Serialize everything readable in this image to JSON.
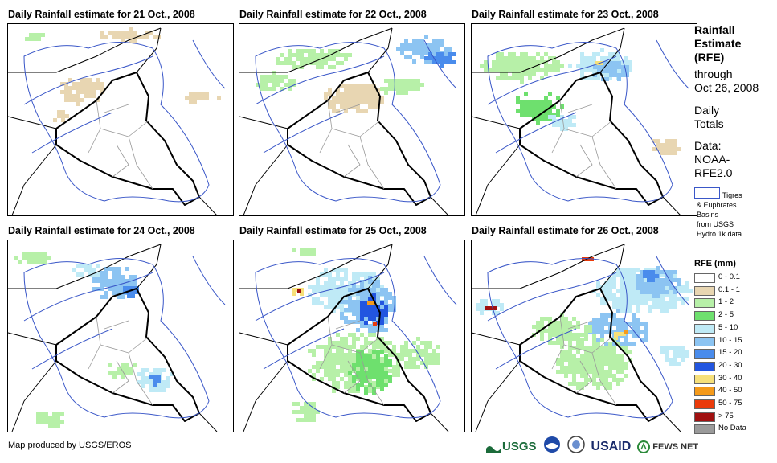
{
  "panels": [
    {
      "title": "Daily Rainfall estimate for 21 Oct., 2008",
      "intensity": 0
    },
    {
      "title": "Daily Rainfall estimate for 22 Oct., 2008",
      "intensity": 1
    },
    {
      "title": "Daily Rainfall estimate for 23 Oct., 2008",
      "intensity": 2
    },
    {
      "title": "Daily Rainfall estimate for 24 Oct., 2008",
      "intensity": 3
    },
    {
      "title": "Daily Rainfall estimate for 25 Oct., 2008",
      "intensity": 4
    },
    {
      "title": "Daily Rainfall estimate for 26 Oct., 2008",
      "intensity": 5
    }
  ],
  "side": {
    "title_line1": "Rainfall",
    "title_line2": "Estimate",
    "title_line3": "(RFE)",
    "through": "through",
    "date": "Oct 26, 2008",
    "daily": "Daily",
    "totals": "Totals",
    "data_label": "Data:",
    "data_src1": "NOAA-",
    "data_src2": "RFE2.0",
    "basin_line1": "Tigres",
    "basin_line2": "& Euphrates",
    "basin_line3": "Basins",
    "basin_line4": "from USGS",
    "basin_line5": "Hydro 1k data"
  },
  "legend": {
    "title": "RFE (mm)",
    "items": [
      {
        "label": "0 - 0.1",
        "color": "#ffffff"
      },
      {
        "label": "0.1 - 1",
        "color": "#e8d6b2"
      },
      {
        "label": "1 - 2",
        "color": "#b7f0a8"
      },
      {
        "label": "2 - 5",
        "color": "#6ee06e"
      },
      {
        "label": "5 - 10",
        "color": "#bfeaf6"
      },
      {
        "label": "10 - 15",
        "color": "#8cc4f2"
      },
      {
        "label": "15 - 20",
        "color": "#4a8cec"
      },
      {
        "label": "20 - 30",
        "color": "#2255e0"
      },
      {
        "label": "30 - 40",
        "color": "#f6e07a"
      },
      {
        "label": "40 - 50",
        "color": "#f59a1a"
      },
      {
        "label": "50 - 75",
        "color": "#ea3a0a"
      },
      {
        "label": "> 75",
        "color": "#a01010"
      },
      {
        "label": "No Data",
        "color": "#9a9a9a"
      }
    ]
  },
  "footer": {
    "credit": "Map produced by USGS/EROS"
  },
  "logos": {
    "usgs": "USGS",
    "usaid": "USAID",
    "fews": "FEWS NET"
  }
}
